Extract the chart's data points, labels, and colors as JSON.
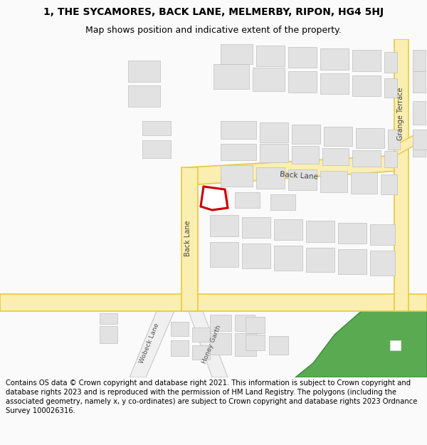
{
  "title_line1": "1, THE SYCAMORES, BACK LANE, MELMERBY, RIPON, HG4 5HJ",
  "title_line2": "Map shows position and indicative extent of the property.",
  "footer": "Contains OS data © Crown copyright and database right 2021. This information is subject to Crown copyright and database rights 2023 and is reproduced with the permission of HM Land Registry. The polygons (including the associated geometry, namely x, y co-ordinates) are subject to Crown copyright and database rights 2023 Ordnance Survey 100026316.",
  "bg_color": "#fafafa",
  "map_bg": "#f7f7f2",
  "road_fill": "#faeeb0",
  "road_outline": "#e8c840",
  "road_outline2": "#d4aa20",
  "building_fill": "#e2e2e2",
  "building_outline": "#c0c0c0",
  "highlight_outline": "#cc0000",
  "green_fill": "#5aaa52",
  "green_outline": "#3a8a3a",
  "minor_road_fill": "#f0f0f0",
  "minor_road_outline": "#c8c8c8"
}
